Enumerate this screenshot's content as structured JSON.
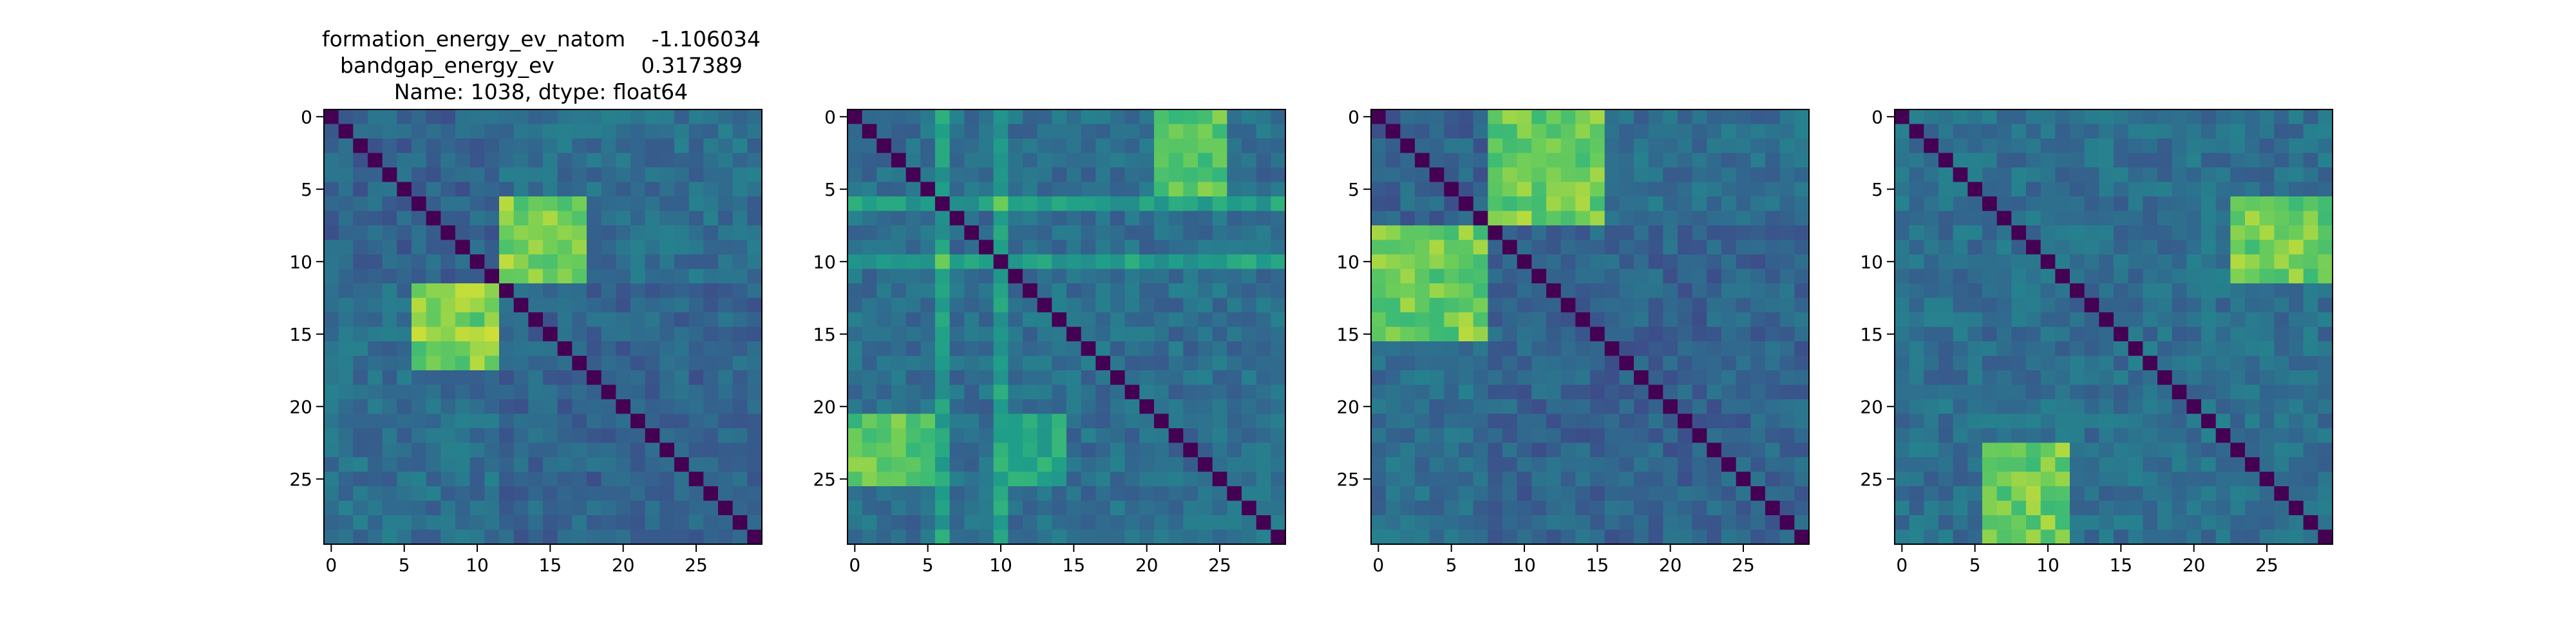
{
  "figure": {
    "title_lines": [
      {
        "label": "formation_energy_ev_natom",
        "value": "-1.106034"
      },
      {
        "label": "bandgap_energy_ev",
        "value": "0.317389"
      },
      {
        "label": "Name: 1038, dtype: float64",
        "value": ""
      }
    ]
  },
  "colormap": "viridis",
  "chart_data": [
    {
      "type": "heatmap",
      "size": 30,
      "xlim": [
        0,
        29
      ],
      "ylim": [
        0,
        29
      ],
      "x_ticks": [
        0,
        5,
        10,
        15,
        20,
        25
      ],
      "y_ticks": [
        0,
        5,
        10,
        15,
        20,
        25
      ],
      "diagonal_value": 0.0,
      "clusters": [
        [
          0,
          11
        ],
        [
          12,
          29
        ]
      ],
      "bright_blocks": [
        {
          "rows": [
            6,
            11
          ],
          "cols": [
            12,
            17
          ],
          "value": 0.9
        },
        {
          "rows": [
            12,
            17
          ],
          "cols": [
            6,
            11
          ],
          "value": 0.9
        }
      ]
    },
    {
      "type": "heatmap",
      "size": 30,
      "xlim": [
        0,
        29
      ],
      "ylim": [
        0,
        29
      ],
      "x_ticks": [
        0,
        5,
        10,
        15,
        20,
        25
      ],
      "y_ticks": [
        0,
        5,
        10,
        15,
        20,
        25
      ],
      "diagonal_value": 0.0,
      "bright_lines": [
        6,
        10
      ],
      "bright_blocks": [
        {
          "rows": [
            0,
            5
          ],
          "cols": [
            21,
            25
          ],
          "value": 0.85
        },
        {
          "rows": [
            21,
            25
          ],
          "cols": [
            0,
            5
          ],
          "value": 0.85
        },
        {
          "rows": [
            21,
            25
          ],
          "cols": [
            10,
            14
          ],
          "value": 0.7
        }
      ]
    },
    {
      "type": "heatmap",
      "size": 30,
      "xlim": [
        0,
        29
      ],
      "ylim": [
        0,
        29
      ],
      "x_ticks": [
        0,
        5,
        10,
        15,
        20,
        25
      ],
      "y_ticks": [
        0,
        5,
        10,
        15,
        20,
        25
      ],
      "diagonal_value": 0.0,
      "clusters": [
        [
          0,
          7
        ],
        [
          8,
          29
        ]
      ],
      "bright_blocks": [
        {
          "rows": [
            0,
            7
          ],
          "cols": [
            8,
            15
          ],
          "value": 0.88
        },
        {
          "rows": [
            8,
            15
          ],
          "cols": [
            0,
            7
          ],
          "value": 0.88
        }
      ]
    },
    {
      "type": "heatmap",
      "size": 30,
      "xlim": [
        0,
        29
      ],
      "ylim": [
        0,
        29
      ],
      "x_ticks": [
        0,
        5,
        10,
        15,
        20,
        25
      ],
      "y_ticks": [
        0,
        5,
        10,
        15,
        20,
        25
      ],
      "diagonal_value": 0.0,
      "bright_blocks": [
        {
          "rows": [
            6,
            11
          ],
          "cols": [
            23,
            29
          ],
          "value": 0.88
        },
        {
          "rows": [
            23,
            29
          ],
          "cols": [
            6,
            11
          ],
          "value": 0.88
        }
      ]
    }
  ]
}
